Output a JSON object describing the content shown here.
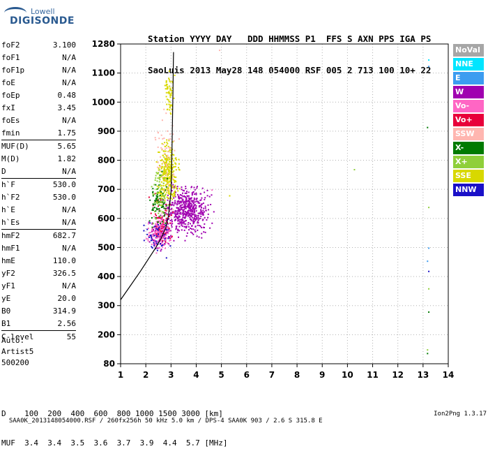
{
  "logo": {
    "line1": "Lowell",
    "line2": "DIGISONDE"
  },
  "header": {
    "line1": "Station YYYY DAY   DDD HHMMSS P1  FFS S AXN PPS IGA PS",
    "line2": "SaoLuis 2013 May28 148 054000 RSF 005 2 713 100 10+ 22"
  },
  "params": [
    {
      "k": "foF2",
      "v": "3.100"
    },
    {
      "k": "foF1",
      "v": "N/A"
    },
    {
      "k": "foF1p",
      "v": "N/A"
    },
    {
      "k": "foE",
      "v": "N/A"
    },
    {
      "k": "foEp",
      "v": "0.48"
    },
    {
      "k": "fxI",
      "v": "3.45"
    },
    {
      "k": "foEs",
      "v": "N/A"
    },
    {
      "k": "fmin",
      "v": "1.75"
    },
    {
      "k": "MUF(D)",
      "v": "5.65"
    },
    {
      "k": "M(D)",
      "v": "1.82"
    },
    {
      "k": "D",
      "v": "N/A"
    },
    {
      "k": "h`F",
      "v": "530.0"
    },
    {
      "k": "h`F2",
      "v": "530.0"
    },
    {
      "k": "h`E",
      "v": "N/A"
    },
    {
      "k": "h`Es",
      "v": "N/A"
    },
    {
      "k": "hmF2",
      "v": "682.7"
    },
    {
      "k": "hmF1",
      "v": "N/A"
    },
    {
      "k": "hmE",
      "v": "110.0"
    },
    {
      "k": "yF2",
      "v": "326.5"
    },
    {
      "k": "yF1",
      "v": "N/A"
    },
    {
      "k": "yE",
      "v": "20.0"
    },
    {
      "k": "B0",
      "v": "314.9"
    },
    {
      "k": "B1",
      "v": "2.56"
    },
    {
      "k": "C-level",
      "v": "55"
    }
  ],
  "auto": {
    "line1": "Auto:",
    "line2": "Artist5",
    "line3": "500200"
  },
  "legend": [
    {
      "label": "NoVal",
      "color": "#a6a6a6"
    },
    {
      "label": "NNE",
      "color": "#00e5ff"
    },
    {
      "label": "E",
      "color": "#3c9cf0"
    },
    {
      "label": "W",
      "color": "#a000b0"
    },
    {
      "label": "Vo-",
      "color": "#ff66c4"
    },
    {
      "label": "Vo+",
      "color": "#e8003a"
    },
    {
      "label": "SSW",
      "color": "#ffb6b0"
    },
    {
      "label": "X-",
      "color": "#007a00"
    },
    {
      "label": "X+",
      "color": "#8fcf3a"
    },
    {
      "label": "SSE",
      "color": "#d8d800"
    },
    {
      "label": "NNW",
      "color": "#1a10c8"
    }
  ],
  "footer": {
    "line1": "D    100  200  400  600  800 1000 1500 3000 [km]",
    "line2": "MUF  3.4  3.4  3.5  3.6  3.7  3.9  4.4  5.7 [MHz]"
  },
  "bottom": {
    "left": "SAA0K_2013148054000.RSF / 260fx256h 50 kHz 5.0 km / DPS-4 SAA0K 903 / 2.6 S 315.8 E",
    "right": "Ion2Png 1.3.17"
  },
  "chart_data": {
    "type": "scatter",
    "x_ticks": [
      1,
      2,
      3,
      4,
      5,
      6,
      7,
      8,
      9,
      10,
      11,
      12,
      13,
      14
    ],
    "y_ticks": [
      80,
      200,
      300,
      400,
      500,
      600,
      700,
      800,
      900,
      1000,
      1100,
      1280
    ],
    "xlim": [
      1,
      14
    ],
    "ylim": [
      80,
      1280
    ],
    "grid": true,
    "trace_curve": [
      [
        1.0,
        320
      ],
      [
        1.4,
        370
      ],
      [
        1.8,
        420
      ],
      [
        2.1,
        460
      ],
      [
        2.4,
        500
      ],
      [
        2.6,
        530
      ],
      [
        2.8,
        570
      ],
      [
        2.9,
        610
      ],
      [
        2.95,
        650
      ],
      [
        3.0,
        690
      ],
      [
        3.02,
        750
      ],
      [
        3.04,
        850
      ],
      [
        3.06,
        950
      ],
      [
        3.08,
        1050
      ],
      [
        3.09,
        1150
      ],
      [
        3.1,
        1230
      ]
    ],
    "clusters": [
      {
        "series": "W",
        "x": [
          2.4,
          4.8
        ],
        "y": [
          520,
          740
        ],
        "n": 520
      },
      {
        "series": "W",
        "x": [
          2.0,
          3.2
        ],
        "y": [
          480,
          620
        ],
        "n": 140
      },
      {
        "series": "Vo-",
        "x": [
          1.9,
          3.1
        ],
        "y": [
          470,
          640
        ],
        "n": 160
      },
      {
        "series": "Vo+",
        "x": [
          2.0,
          3.3
        ],
        "y": [
          480,
          720
        ],
        "n": 60
      },
      {
        "series": "SSE",
        "x": [
          2.3,
          3.4
        ],
        "y": [
          620,
          900
        ],
        "n": 330
      },
      {
        "series": "SSE",
        "x": [
          2.6,
          3.2
        ],
        "y": [
          900,
          1140
        ],
        "n": 60
      },
      {
        "series": "X-",
        "x": [
          2.0,
          2.9
        ],
        "y": [
          540,
          780
        ],
        "n": 80
      },
      {
        "series": "X+",
        "x": [
          2.1,
          3.0
        ],
        "y": [
          560,
          800
        ],
        "n": 60
      },
      {
        "series": "SSW",
        "x": [
          2.2,
          3.4
        ],
        "y": [
          560,
          1050
        ],
        "n": 60
      },
      {
        "series": "NNW",
        "x": [
          1.6,
          3.2
        ],
        "y": [
          440,
          620
        ],
        "n": 40
      }
    ],
    "outliers": [
      {
        "series": "NNE",
        "x": 13.2,
        "y": 1185
      },
      {
        "series": "E",
        "x": 13.2,
        "y": 1145
      },
      {
        "series": "X-",
        "x": 13.15,
        "y": 915
      },
      {
        "series": "X+",
        "x": 13.2,
        "y": 640
      },
      {
        "series": "E",
        "x": 13.2,
        "y": 500
      },
      {
        "series": "E",
        "x": 13.15,
        "y": 455
      },
      {
        "series": "NNW",
        "x": 13.2,
        "y": 420
      },
      {
        "series": "X+",
        "x": 13.2,
        "y": 360
      },
      {
        "series": "X-",
        "x": 13.2,
        "y": 280
      },
      {
        "series": "X+",
        "x": 13.15,
        "y": 140
      },
      {
        "series": "X-",
        "x": 13.15,
        "y": 125
      },
      {
        "series": "X+",
        "x": 10.25,
        "y": 770
      },
      {
        "series": "SSW",
        "x": 4.9,
        "y": 1245
      },
      {
        "series": "SSE",
        "x": 5.3,
        "y": 680
      },
      {
        "series": "Vo-",
        "x": 4.6,
        "y": 700
      }
    ]
  }
}
